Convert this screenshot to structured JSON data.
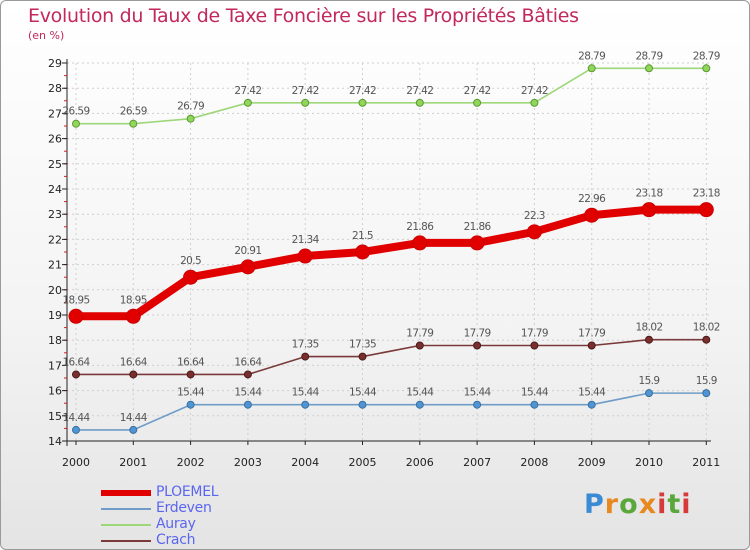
{
  "title": "Evolution du Taux de Taxe Foncière sur les Propriétés Bâties",
  "unit": "(en %)",
  "brand": {
    "text": "Proxiti",
    "colors": [
      "#3a8ad6",
      "#e8891f",
      "#5aa83b",
      "#e8891f",
      "#d63a3a",
      "#5aa83b",
      "#d63a3a"
    ]
  },
  "chart_data": {
    "type": "line",
    "title": "Evolution du Taux de Taxe Foncière sur les Propriétés Bâties",
    "ylabel": "(en %)",
    "xlabel": "",
    "ylim": [
      14,
      29
    ],
    "yticks": [
      "14",
      "15",
      "16",
      "17",
      "18",
      "19",
      "20",
      "21",
      "22",
      "23",
      "24",
      "25",
      "26",
      "27",
      "28",
      "29"
    ],
    "categories": [
      "2000",
      "2001",
      "2002",
      "2003",
      "2004",
      "2005",
      "2006",
      "2007",
      "2008",
      "2009",
      "2010",
      "2011"
    ],
    "series": [
      {
        "name": "PLOEMEL",
        "color": "#e00000",
        "markerFill": "#e00000",
        "markerStroke": "#cc0000",
        "thick": true,
        "values": [
          18.95,
          18.95,
          20.5,
          20.91,
          21.34,
          21.5,
          21.86,
          21.86,
          22.3,
          22.96,
          23.18,
          23.18
        ],
        "labels": [
          "18.95",
          "18.95",
          "20.5",
          "20.91",
          "21.34",
          "21.5",
          "21.86",
          "21.86",
          "22.3",
          "22.96",
          "23.18",
          "23.18"
        ]
      },
      {
        "name": "Erdeven",
        "color": "#6f9dc8",
        "markerFill": "#4f95d6",
        "markerStroke": "#3a6f9a",
        "thick": false,
        "values": [
          14.44,
          14.44,
          15.44,
          15.44,
          15.44,
          15.44,
          15.44,
          15.44,
          15.44,
          15.44,
          15.9,
          15.9
        ],
        "labels": [
          "14.44",
          "14.44",
          "15.44",
          "15.44",
          "15.44",
          "15.44",
          "15.44",
          "15.44",
          "15.44",
          "15.44",
          "15.9",
          "15.9"
        ]
      },
      {
        "name": "Auray",
        "color": "#9ed67a",
        "markerFill": "#8fd65a",
        "markerStroke": "#5c9a32",
        "thick": false,
        "values": [
          26.59,
          26.59,
          26.79,
          27.42,
          27.42,
          27.42,
          27.42,
          27.42,
          27.42,
          28.79,
          28.79,
          28.79
        ],
        "labels": [
          "26.59",
          "26.59",
          "26.79",
          "27.42",
          "27.42",
          "27.42",
          "27.42",
          "27.42",
          "27.42",
          "28.79",
          "28.79",
          "28.79"
        ]
      },
      {
        "name": "Crach",
        "color": "#7a3a3a",
        "markerFill": "#7a2e2e",
        "markerStroke": "#4a1a1a",
        "thick": false,
        "values": [
          16.64,
          16.64,
          16.64,
          16.64,
          17.35,
          17.35,
          17.79,
          17.79,
          17.79,
          17.79,
          18.02,
          18.02
        ],
        "labels": [
          "16.64",
          "16.64",
          "16.64",
          "16.64",
          "17.35",
          "17.35",
          "17.79",
          "17.79",
          "17.79",
          "17.79",
          "18.02",
          "18.02"
        ]
      }
    ]
  }
}
